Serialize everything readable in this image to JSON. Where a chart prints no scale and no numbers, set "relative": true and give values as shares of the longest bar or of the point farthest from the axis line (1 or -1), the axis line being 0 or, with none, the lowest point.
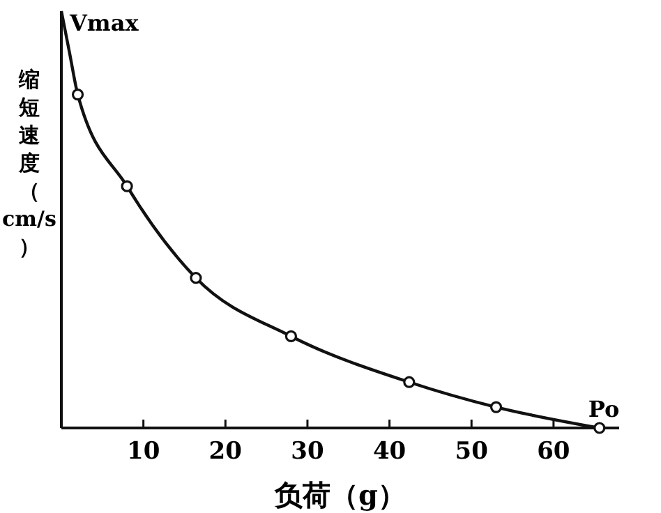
{
  "chart_data": {
    "type": "line",
    "relative": true,
    "xlabel": "负荷（g）",
    "ylabel": "缩短速度（cm/s）",
    "xlim": [
      0,
      68
    ],
    "xticks": [
      10,
      20,
      30,
      40,
      50,
      60
    ],
    "grid": false,
    "series": [
      {
        "color": "#111111",
        "marker": "none",
        "x": [
          0,
          1,
          2,
          8,
          16.4,
          28,
          42.4,
          53,
          65.6
        ],
        "values": [
          1,
          0.9,
          0.8,
          0.58,
          0.36,
          0.22,
          0.11,
          0.05,
          0
        ]
      },
      {
        "type": "scatter",
        "color": "#111111",
        "marker": "circle",
        "x": [
          2,
          8,
          16.4,
          28,
          42.4,
          53,
          65.6
        ],
        "values": [
          0.8,
          0.58,
          0.36,
          0.22,
          0.11,
          0.05,
          0
        ]
      }
    ],
    "annotations": [
      {
        "text": "Vmax",
        "x": 0,
        "y": 1
      },
      {
        "text": "Po",
        "x": 65.6,
        "y": 0
      }
    ]
  }
}
